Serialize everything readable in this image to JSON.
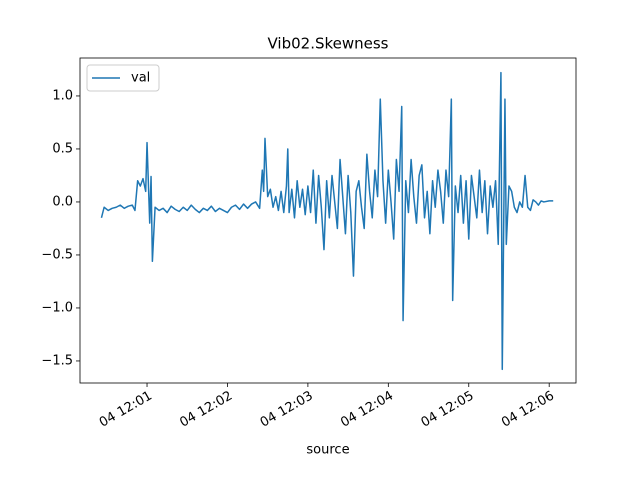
{
  "chart_data": {
    "type": "line",
    "title": "Vib02.Skewness",
    "x_label": "source",
    "x": [
      "04 12:00:26",
      "04 12:00:28",
      "04 12:00:31",
      "04 12:00:34",
      "04 12:00:37",
      "04 12:00:40",
      "04 12:00:43",
      "04 12:00:46",
      "04 12:00:49",
      "04 12:00:51",
      "04 12:00:53",
      "04 12:00:55",
      "04 12:00:57",
      "04 12:00:59",
      "04 12:01:00",
      "04 12:01:02",
      "04 12:01:03",
      "04 12:01:04",
      "04 12:01:06",
      "04 12:01:09",
      "04 12:01:12",
      "04 12:01:15",
      "04 12:01:18",
      "04 12:01:21",
      "04 12:01:24",
      "04 12:01:27",
      "04 12:01:30",
      "04 12:01:33",
      "04 12:01:36",
      "04 12:01:39",
      "04 12:01:42",
      "04 12:01:45",
      "04 12:01:48",
      "04 12:01:51",
      "04 12:01:54",
      "04 12:01:57",
      "04 12:02:00",
      "04 12:02:03",
      "04 12:02:06",
      "04 12:02:09",
      "04 12:02:12",
      "04 12:02:15",
      "04 12:02:18",
      "04 12:02:21",
      "04 12:02:24",
      "04 12:02:26",
      "04 12:02:27",
      "04 12:02:28",
      "04 12:02:30",
      "04 12:02:32",
      "04 12:02:34",
      "04 12:02:36",
      "04 12:02:38",
      "04 12:02:40",
      "04 12:02:42",
      "04 12:02:44",
      "04 12:02:45",
      "04 12:02:46",
      "04 12:02:48",
      "04 12:02:50",
      "04 12:02:52",
      "04 12:02:54",
      "04 12:02:56",
      "04 12:02:58",
      "04 12:03:00",
      "04 12:03:02",
      "04 12:03:04",
      "04 12:03:06",
      "04 12:03:08",
      "04 12:03:10",
      "04 12:03:12",
      "04 12:03:14",
      "04 12:03:16",
      "04 12:03:18",
      "04 12:03:20",
      "04 12:03:22",
      "04 12:03:24",
      "04 12:03:26",
      "04 12:03:28",
      "04 12:03:30",
      "04 12:03:32",
      "04 12:03:34",
      "04 12:03:36",
      "04 12:03:38",
      "04 12:03:40",
      "04 12:03:42",
      "04 12:03:44",
      "04 12:03:46",
      "04 12:03:48",
      "04 12:03:50",
      "04 12:03:52",
      "04 12:03:54",
      "04 12:03:56",
      "04 12:03:58",
      "04 12:04:00",
      "04 12:04:02",
      "04 12:04:04",
      "04 12:04:06",
      "04 12:04:08",
      "04 12:04:10",
      "04 12:04:11",
      "04 12:04:13",
      "04 12:04:15",
      "04 12:04:17",
      "04 12:04:19",
      "04 12:04:21",
      "04 12:04:23",
      "04 12:04:25",
      "04 12:04:27",
      "04 12:04:29",
      "04 12:04:31",
      "04 12:04:33",
      "04 12:04:35",
      "04 12:04:37",
      "04 12:04:39",
      "04 12:04:41",
      "04 12:04:43",
      "04 12:04:45",
      "04 12:04:47",
      "04 12:04:48",
      "04 12:04:50",
      "04 12:04:52",
      "04 12:04:54",
      "04 12:04:56",
      "04 12:04:58",
      "04 12:05:00",
      "04 12:05:02",
      "04 12:05:04",
      "04 12:05:06",
      "04 12:05:08",
      "04 12:05:10",
      "04 12:05:12",
      "04 12:05:14",
      "04 12:05:16",
      "04 12:05:18",
      "04 12:05:20",
      "04 12:05:22",
      "04 12:05:24",
      "04 12:05:25",
      "04 12:05:27",
      "04 12:05:28",
      "04 12:05:30",
      "04 12:05:32",
      "04 12:05:34",
      "04 12:05:36",
      "04 12:05:38",
      "04 12:05:40",
      "04 12:05:42",
      "04 12:05:44",
      "04 12:05:46",
      "04 12:05:48",
      "04 12:05:50",
      "04 12:05:52",
      "04 12:05:54",
      "04 12:05:56",
      "04 12:06:00",
      "04 12:06:03"
    ],
    "series": [
      {
        "name": "val",
        "color": "#1f77b4",
        "values": [
          -0.15,
          -0.05,
          -0.08,
          -0.06,
          -0.05,
          -0.03,
          -0.06,
          -0.04,
          -0.03,
          -0.08,
          0.2,
          0.15,
          0.22,
          0.1,
          0.56,
          -0.2,
          0.24,
          -0.56,
          -0.05,
          -0.08,
          -0.06,
          -0.1,
          -0.04,
          -0.07,
          -0.09,
          -0.05,
          -0.08,
          -0.03,
          -0.07,
          -0.1,
          -0.06,
          -0.08,
          -0.04,
          -0.09,
          -0.06,
          -0.08,
          -0.1,
          -0.05,
          -0.03,
          -0.07,
          -0.02,
          -0.06,
          -0.02,
          0.0,
          -0.06,
          0.3,
          0.1,
          0.6,
          0.05,
          0.12,
          -0.05,
          0.05,
          -0.08,
          0.1,
          -0.1,
          0.15,
          0.5,
          -0.1,
          0.12,
          -0.15,
          0.2,
          -0.05,
          0.12,
          -0.12,
          0.15,
          -0.1,
          0.3,
          -0.2,
          0.25,
          -0.05,
          -0.45,
          0.2,
          -0.15,
          0.25,
          0.0,
          -0.25,
          0.4,
          0.05,
          -0.3,
          0.25,
          -0.1,
          -0.7,
          0.1,
          0.2,
          -0.05,
          -0.25,
          0.45,
          0.1,
          -0.15,
          0.3,
          0.05,
          0.97,
          0.2,
          -0.2,
          0.3,
          0.0,
          -0.35,
          0.4,
          0.1,
          0.9,
          -1.12,
          0.2,
          -0.1,
          0.4,
          0.05,
          -0.2,
          0.25,
          0.35,
          -0.15,
          0.1,
          -0.3,
          0.2,
          -0.05,
          0.3,
          0.1,
          -0.2,
          0.3,
          0.05,
          0.97,
          -0.93,
          0.15,
          -0.1,
          0.25,
          -0.2,
          0.2,
          -0.35,
          0.25,
          0.05,
          -0.15,
          0.3,
          -0.1,
          0.2,
          -0.3,
          0.15,
          -0.05,
          0.2,
          -0.4,
          1.22,
          -1.58,
          0.97,
          -0.4,
          0.15,
          0.1,
          -0.05,
          -0.1,
          0.0,
          -0.05,
          0.25,
          -0.05,
          -0.08,
          0.02,
          0.0,
          -0.03,
          0.01,
          0.0,
          0.01,
          0.01
        ]
      }
    ],
    "xlim": [
      "04 12:00:10",
      "04 12:06:20"
    ],
    "xticks": [
      {
        "value": "04 12:01:00",
        "label": "04 12:01"
      },
      {
        "value": "04 12:02:00",
        "label": "04 12:02"
      },
      {
        "value": "04 12:03:00",
        "label": "04 12:03"
      },
      {
        "value": "04 12:04:00",
        "label": "04 12:04"
      },
      {
        "value": "04 12:05:00",
        "label": "04 12:05"
      },
      {
        "value": "04 12:06:00",
        "label": "04 12:06"
      }
    ],
    "ylim": [
      -1.708,
      1.358
    ],
    "yticks": [
      {
        "value": -1.5,
        "label": "−1.5"
      },
      {
        "value": -1.0,
        "label": "−1.0"
      },
      {
        "value": -0.5,
        "label": "−0.5"
      },
      {
        "value": 0,
        "label": "0.0"
      },
      {
        "value": 0.5,
        "label": "0.5"
      },
      {
        "value": 1.0,
        "label": "1.0"
      }
    ],
    "legend": "upper left"
  }
}
